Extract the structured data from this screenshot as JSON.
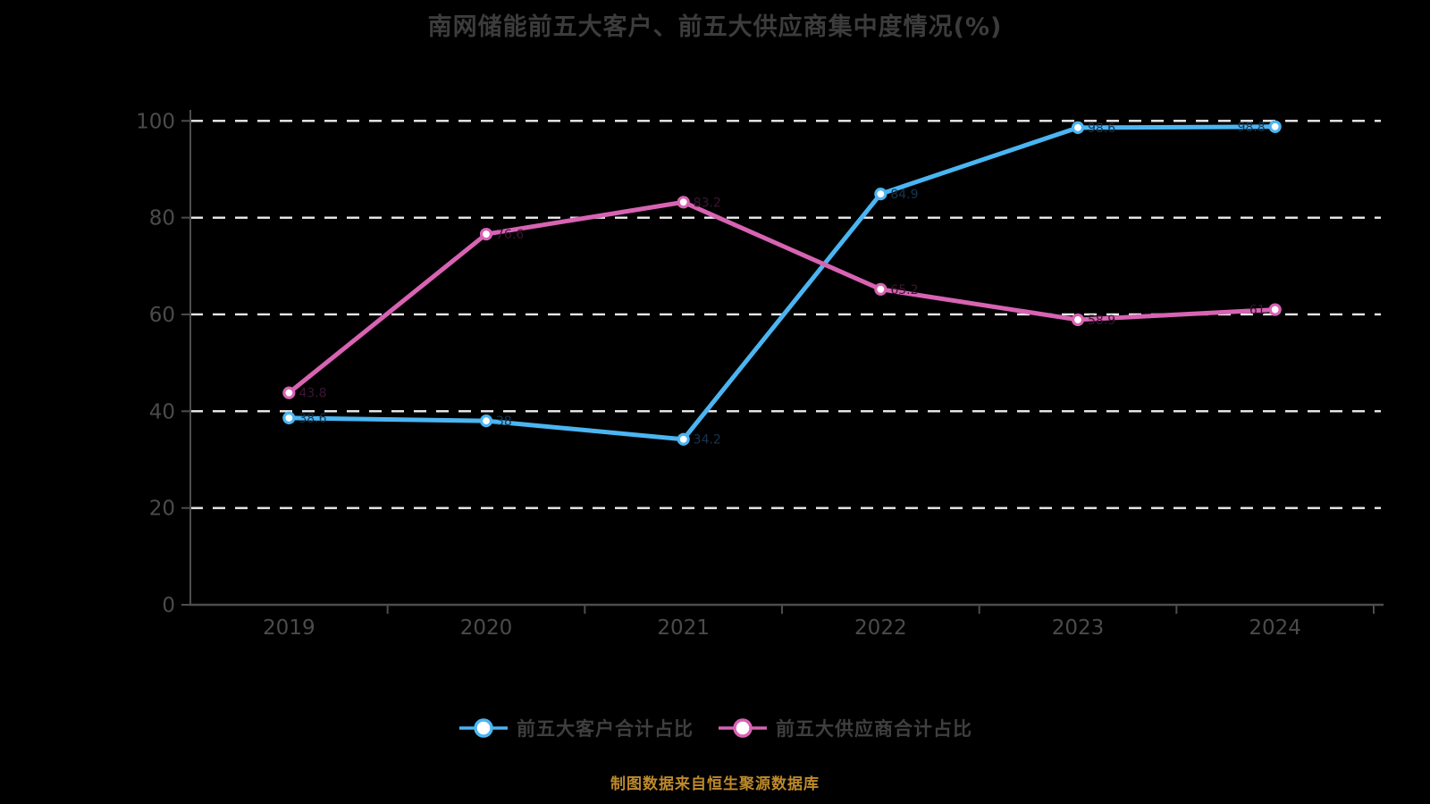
{
  "title": "南网储能前五大客户、前五大供应商集中度情况(%)",
  "source_note": "制图数据来自恒生聚源数据库",
  "legend": [
    {
      "label": "前五大客户合计占比",
      "color": "#4BB5F2"
    },
    {
      "label": "前五大供应商合计占比",
      "color": "#D863B3"
    }
  ],
  "colors": {
    "background": "#000000",
    "title_text": "#3c3c3c",
    "axis_line": "#4d4d4d",
    "axis_tick_label": "#4b4b4b",
    "gridline": "#ededed",
    "legend_text": "#3f3f3f",
    "source_note_text": "#bd8a2b",
    "marker_fill": "#ffffff",
    "series_customers": "#4BB5F2",
    "series_suppliers": "#D863B3"
  },
  "chart_data": {
    "type": "line",
    "title": "南网储能前五大客户、前五大供应商集中度情况(%)",
    "categories": [
      "2019",
      "2020",
      "2021",
      "2022",
      "2023",
      "2024"
    ],
    "series": [
      {
        "name": "前五大客户合计占比",
        "color": "#4BB5F2",
        "label_color": "#17344d",
        "values": [
          38.6,
          38.0,
          34.2,
          84.9,
          98.6,
          98.8
        ]
      },
      {
        "name": "前五大供应商合计占比",
        "color": "#D863B3",
        "label_color": "#3d1533",
        "values": [
          43.8,
          76.6,
          83.2,
          65.2,
          58.9,
          61.0
        ]
      }
    ],
    "xlabel": "",
    "ylabel": "",
    "ylim": [
      0,
      100
    ],
    "yticks": [
      0,
      20,
      40,
      60,
      80,
      100
    ],
    "grid": "horizontal-dashed-white",
    "legend_position": "bottom"
  }
}
